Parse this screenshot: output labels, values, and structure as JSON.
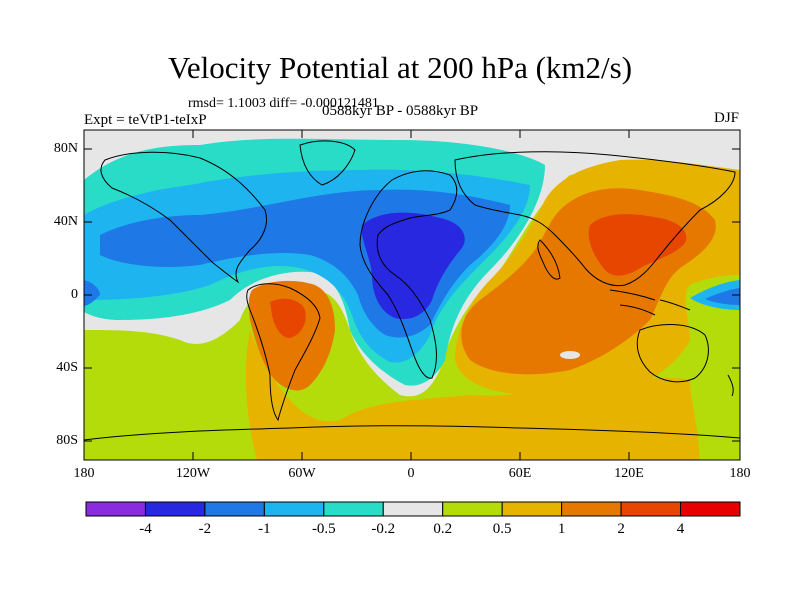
{
  "title": "Velocity Potential at 200 hPa (km2/s)",
  "stats": "rmsd= 1.1003 diff= -0.000121481",
  "experiment": "Expt = teVtP1-teIxP",
  "period": "0588kyr BP - 0588kyr BP",
  "season": "DJF",
  "map": {
    "lat_labels": [
      "80N",
      "40N",
      "0",
      "40S",
      "80S"
    ],
    "lat_values": [
      80,
      40,
      0,
      -40,
      -80
    ],
    "lon_labels": [
      "180",
      "120W",
      "60W",
      "0",
      "60E",
      "120E",
      "180"
    ],
    "lon_values": [
      -180,
      -120,
      -60,
      0,
      60,
      120,
      180
    ],
    "lon_range": [
      -180,
      180
    ],
    "lat_range": [
      -90,
      90
    ]
  },
  "colorbar": {
    "labels": [
      "-4",
      "-2",
      "-1",
      "-0.5",
      "-0.2",
      "0.2",
      "0.5",
      "1",
      "2",
      "4"
    ],
    "colors": [
      "#8a2be2",
      "#2828e0",
      "#1e78e6",
      "#1eb4f0",
      "#28dcc8",
      "#e6e6e6",
      "#b4dc0a",
      "#e6b400",
      "#e67800",
      "#e64600",
      "#e60000"
    ]
  }
}
